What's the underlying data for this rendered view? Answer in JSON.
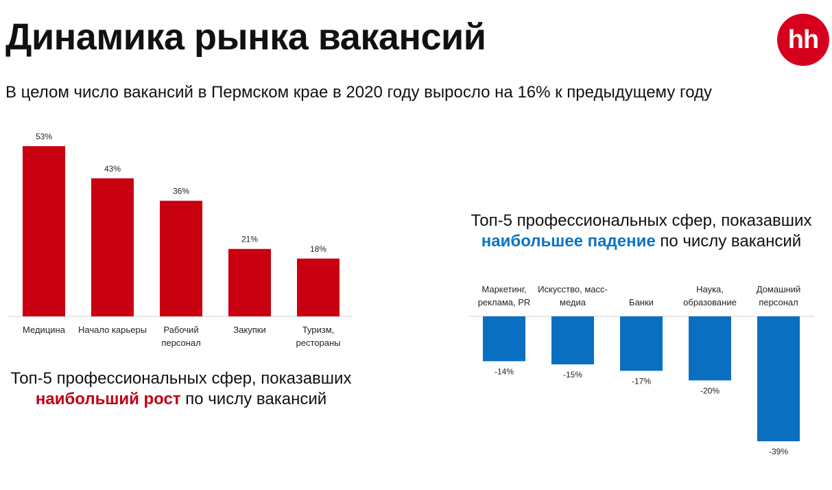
{
  "header": {
    "title": "Динамика рынка вакансий",
    "subtitle": "В целом число вакансий в Пермском крае в 2020 году выросло на 16% к предыдущему году",
    "logo_text": "hh"
  },
  "captions": {
    "growth": {
      "line1": "Топ-5 профессиональных сфер, показавших",
      "highlight": "наибольший рост",
      "rest": " по числу вакансий"
    },
    "decline": {
      "line1": "Топ-5 профессиональных сфер, показавших",
      "highlight": "наибольшее падение",
      "rest": " по числу вакансий"
    }
  },
  "colors": {
    "growth_bar": "#c8000f",
    "decline_bar": "#0b6fc1",
    "logo": "#d6001c",
    "axis": "#cfcfcf"
  },
  "chart_data": [
    {
      "type": "bar",
      "categories": [
        [
          "Медицина"
        ],
        [
          "Начало карьеры"
        ],
        [
          "Рабочий",
          "персонал"
        ],
        [
          "Закупки"
        ],
        [
          "Туризм,",
          "рестораны"
        ]
      ],
      "values": [
        53,
        43,
        36,
        21,
        18
      ],
      "labels": [
        "53%",
        "43%",
        "36%",
        "21%",
        "18%"
      ],
      "unit": "%",
      "ylim": [
        0,
        53
      ],
      "grid": false,
      "legend": "none"
    },
    {
      "type": "bar",
      "categories": [
        [
          "Маркетинг,",
          "реклама, PR"
        ],
        [
          "Искусство, масс-",
          "медиа"
        ],
        [
          "Банки"
        ],
        [
          "Наука,",
          "образование"
        ],
        [
          "Домашний",
          "персонал"
        ]
      ],
      "values": [
        -14,
        -15,
        -17,
        -20,
        -39
      ],
      "labels": [
        "-14%",
        "-15%",
        "-17%",
        "-20%",
        "-39%"
      ],
      "unit": "%",
      "ylim": [
        -39,
        0
      ],
      "grid": false,
      "legend": "none"
    }
  ]
}
